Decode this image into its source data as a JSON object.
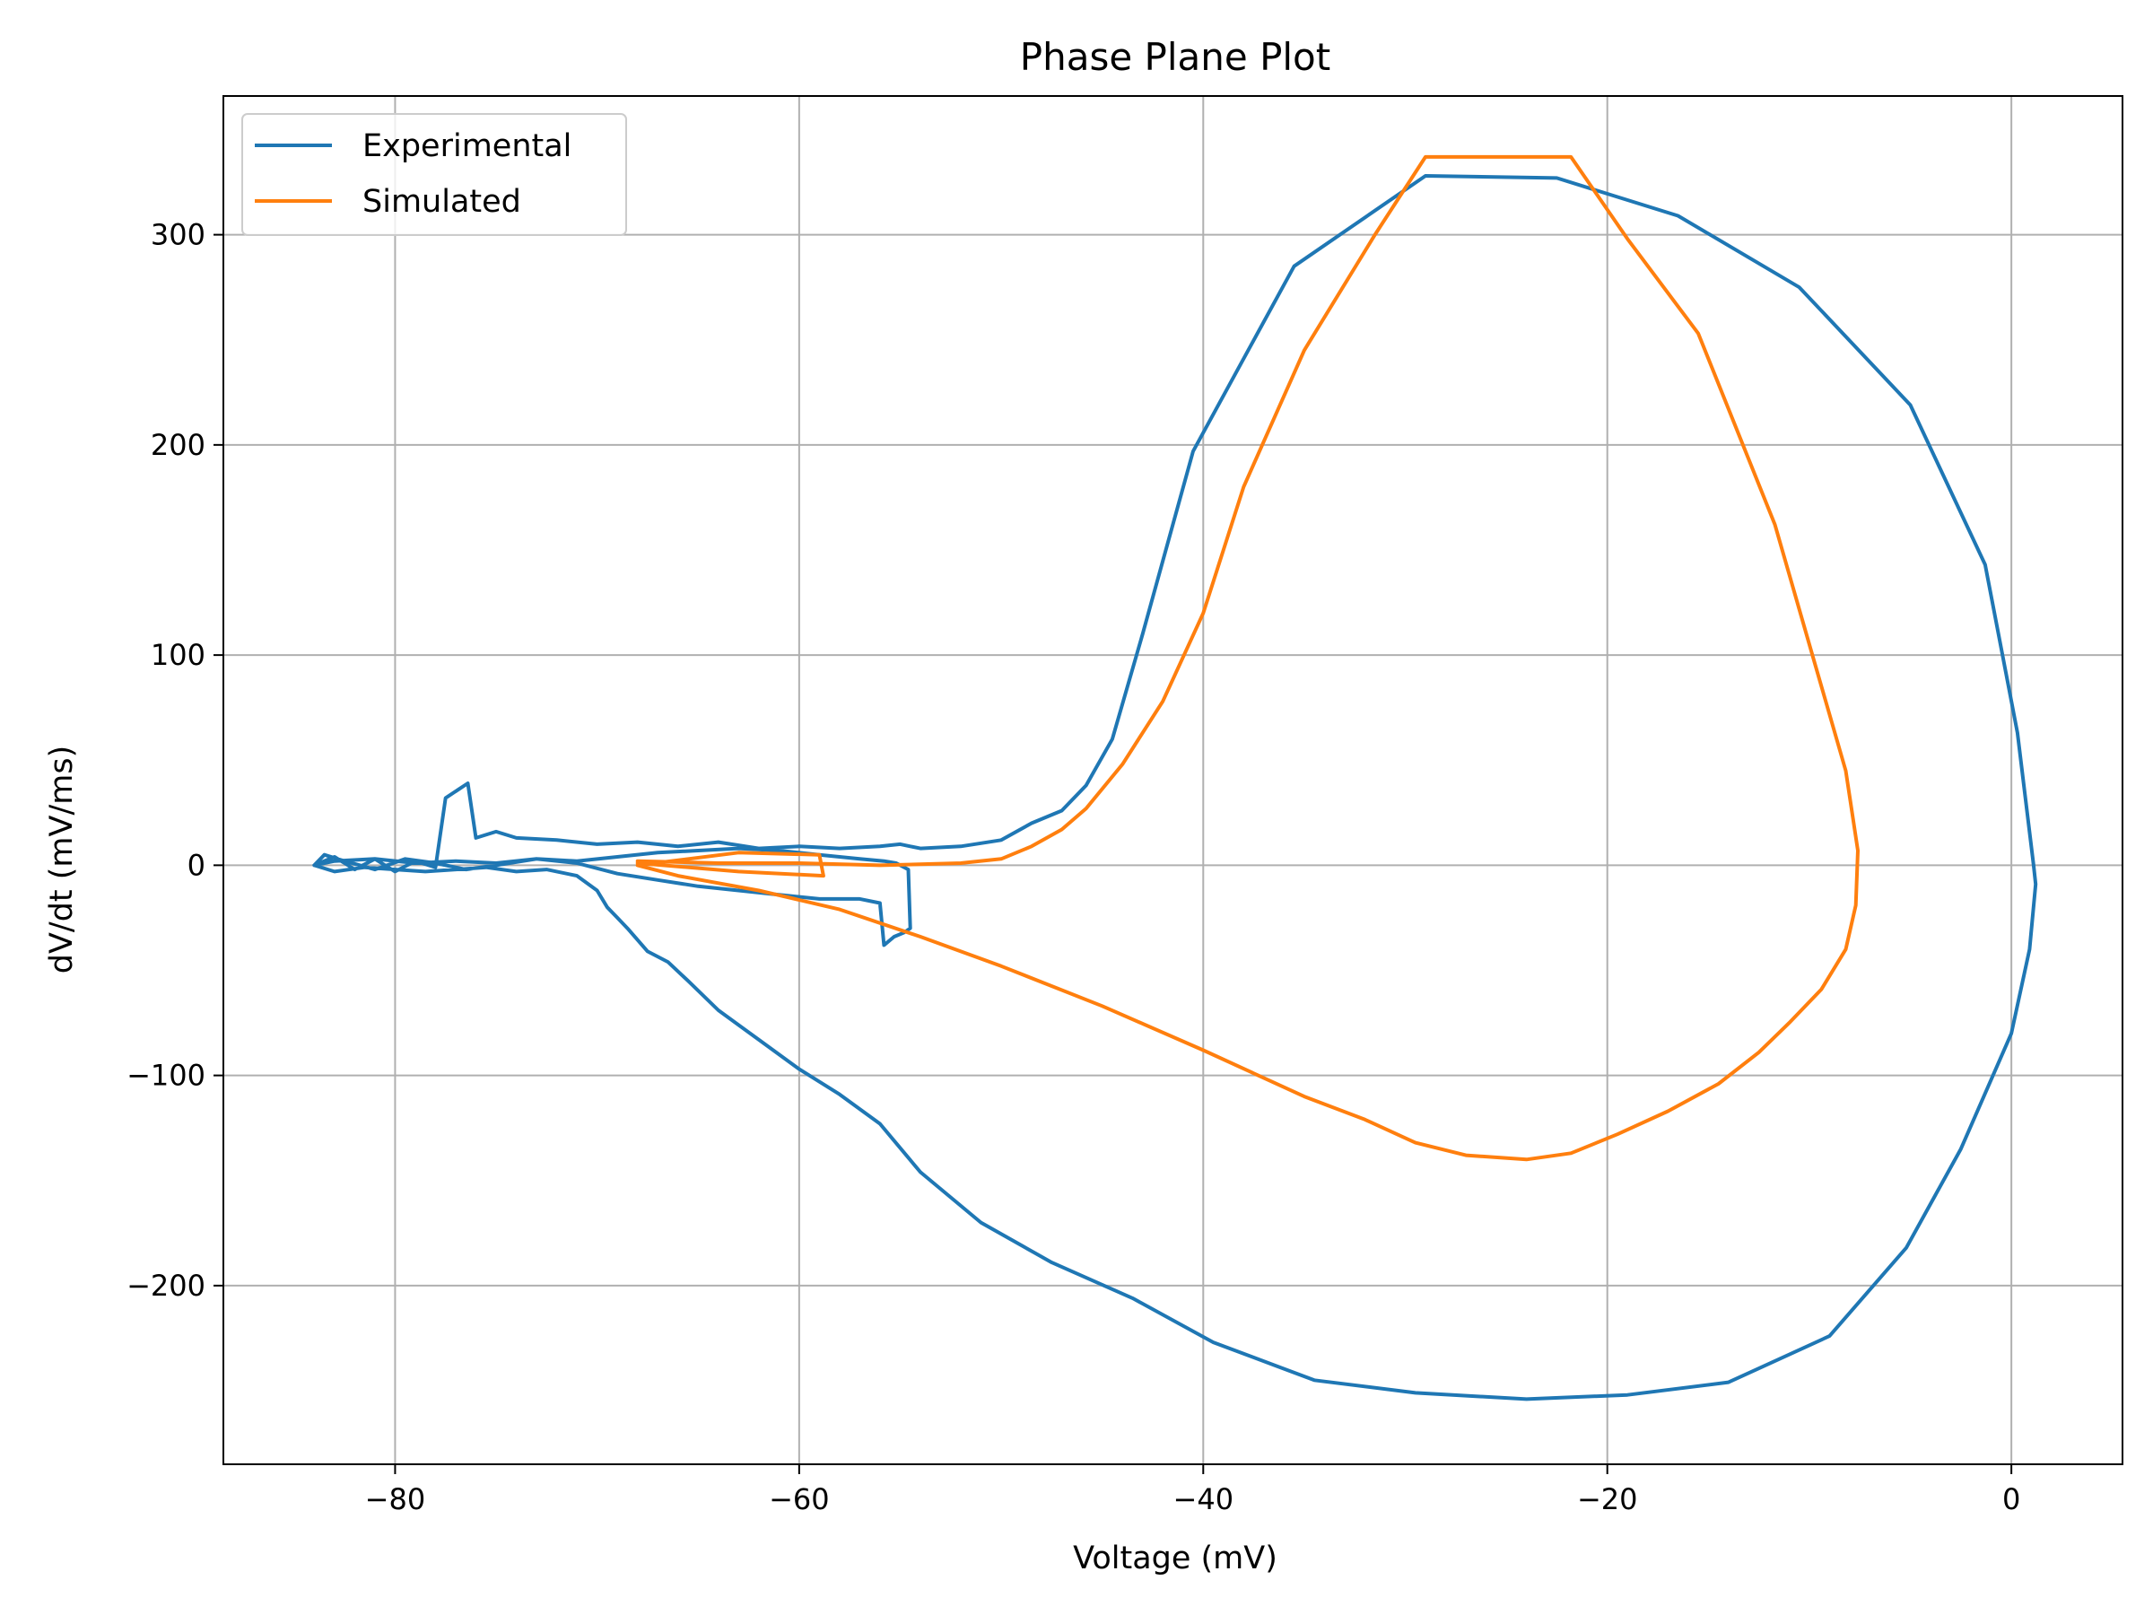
{
  "chart_data": {
    "type": "line",
    "title": "Phase Plane Plot",
    "xlabel": "Voltage (mV)",
    "ylabel": "dV/dt (mV/ms)",
    "xlim": [
      -88.5,
      5.5
    ],
    "ylim": [
      -285,
      366
    ],
    "xticks": [
      -80,
      -60,
      -40,
      -20,
      0
    ],
    "xtick_labels": [
      "−80",
      "−60",
      "−40",
      "−20",
      "0"
    ],
    "yticks": [
      -200,
      -100,
      0,
      100,
      200,
      300
    ],
    "ytick_labels": [
      "−200",
      "−100",
      "0",
      "100",
      "200",
      "300"
    ],
    "grid": true,
    "legend": "top-left",
    "series": [
      {
        "name": "Experimental",
        "color": "#1f77b4",
        "x": [
          -84.0,
          -83.0,
          -82.0,
          -81.0,
          -80.0,
          -79.0,
          -78.0,
          -77.5,
          -77.5,
          -76.4,
          -76.0,
          -75.0,
          -74.0,
          -72.0,
          -70.0,
          -68.0,
          -66.0,
          -64.0,
          -62.0,
          -60.0,
          -58.0,
          -56.0,
          -55.0,
          -54.5,
          -54.0,
          -52.0,
          -50.0,
          -48.5,
          -47.0,
          -45.8,
          -44.5,
          -43.0,
          -40.5,
          -35.5,
          -29.0,
          -22.5,
          -16.5,
          -10.5,
          -5.0,
          -1.3,
          0.3,
          1.1,
          1.2,
          0.9,
          0.0,
          -2.5,
          -5.2,
          -9.0,
          -14.0,
          -19.0,
          -24.0,
          -29.5,
          -34.5,
          -39.5,
          -43.5,
          -47.5,
          -51.0,
          -54.0,
          -56.0,
          -58.0,
          -60.0,
          -62.0,
          -64.0,
          -65.5,
          -66.5,
          -67.5,
          -68.5,
          -69.0,
          -69.5,
          -70.0,
          -71.0,
          -72.5,
          -74.0,
          -75.5,
          -77.0,
          -78.5,
          -80.0,
          -81.5,
          -83.0,
          -84.0,
          -83.5,
          -82.5,
          -81.0,
          -79.5,
          -78.0,
          -76.5,
          -75.0,
          -73.0,
          -71.0,
          -69.0,
          -67.0,
          -65.0,
          -63.0,
          -61.0,
          -59.0,
          -57.0,
          -56.0,
          -55.8,
          -55.3,
          -54.8,
          -54.5,
          -54.6,
          -55.2,
          -55.8,
          -57.0,
          -59.0,
          -61.0,
          -63.0,
          -65.0,
          -67.0,
          -69.0,
          -71.0,
          -73.0,
          -75.0,
          -77.0,
          -79.0,
          -81.0,
          -83.0,
          -84.0
        ],
        "y": [
          0,
          4,
          -2,
          3,
          -3,
          2,
          -1,
          32,
          32,
          39,
          13,
          16,
          13,
          12,
          10,
          11,
          9,
          11,
          8,
          9,
          8,
          9,
          10,
          9,
          8,
          9,
          12,
          20,
          26,
          38,
          60,
          110,
          197,
          285,
          328,
          327,
          309,
          275,
          219,
          143,
          63,
          0,
          -9,
          -40,
          -80,
          -135,
          -182,
          -224,
          -246,
          -252,
          -254,
          -251,
          -245,
          -227,
          -206,
          -189,
          -170,
          -146,
          -123,
          -109,
          -97,
          -83,
          -69,
          -55,
          -46,
          -41,
          -30,
          -25,
          -20,
          -12,
          -5,
          -2,
          -3,
          -1,
          -2,
          -3,
          -2,
          -1,
          -3,
          0,
          5,
          2,
          -2,
          3,
          1,
          -2,
          0,
          3,
          1,
          -4,
          -7,
          -10,
          -12,
          -14,
          -16,
          -16,
          -18,
          -38,
          -34,
          -32,
          -30,
          -2,
          1,
          2,
          3,
          5,
          7,
          8,
          7,
          6,
          4,
          2,
          3,
          1,
          2,
          1,
          3,
          2,
          0
        ]
      },
      {
        "name": "Simulated",
        "color": "#ff7f0e",
        "x": [
          -68.0,
          -64.0,
          -60.0,
          -56.0,
          -52.0,
          -50.0,
          -48.5,
          -47.0,
          -45.8,
          -44.0,
          -42.0,
          -40.0,
          -38.0,
          -35.0,
          -31.5,
          -29.0,
          -21.8,
          -19.0,
          -15.5,
          -11.7,
          -9.7,
          -8.2,
          -7.6,
          -7.7,
          -8.2,
          -9.4,
          -11.0,
          -12.5,
          -14.5,
          -17.0,
          -19.5,
          -21.8,
          -24.0,
          -27.0,
          -29.5,
          -32.0,
          -35.0,
          -40.0,
          -45.0,
          -50.0,
          -54.0,
          -58.0,
          -62.0,
          -66.0,
          -68.0,
          -63.0,
          -59.0,
          -58.8,
          -63.0,
          -68.0
        ],
        "y": [
          2,
          1,
          1,
          0,
          1,
          3,
          9,
          17,
          27,
          48,
          78,
          120,
          180,
          245,
          300,
          337,
          337,
          298,
          253,
          162,
          95,
          45,
          7,
          -19,
          -40,
          -59,
          -75,
          -89,
          -104,
          -117,
          -128,
          -137,
          -140,
          -138,
          -132,
          -121,
          -110,
          -88,
          -67,
          -48,
          -34,
          -21,
          -12,
          -5,
          0,
          6,
          5,
          -5,
          -3,
          1
        ]
      }
    ]
  }
}
